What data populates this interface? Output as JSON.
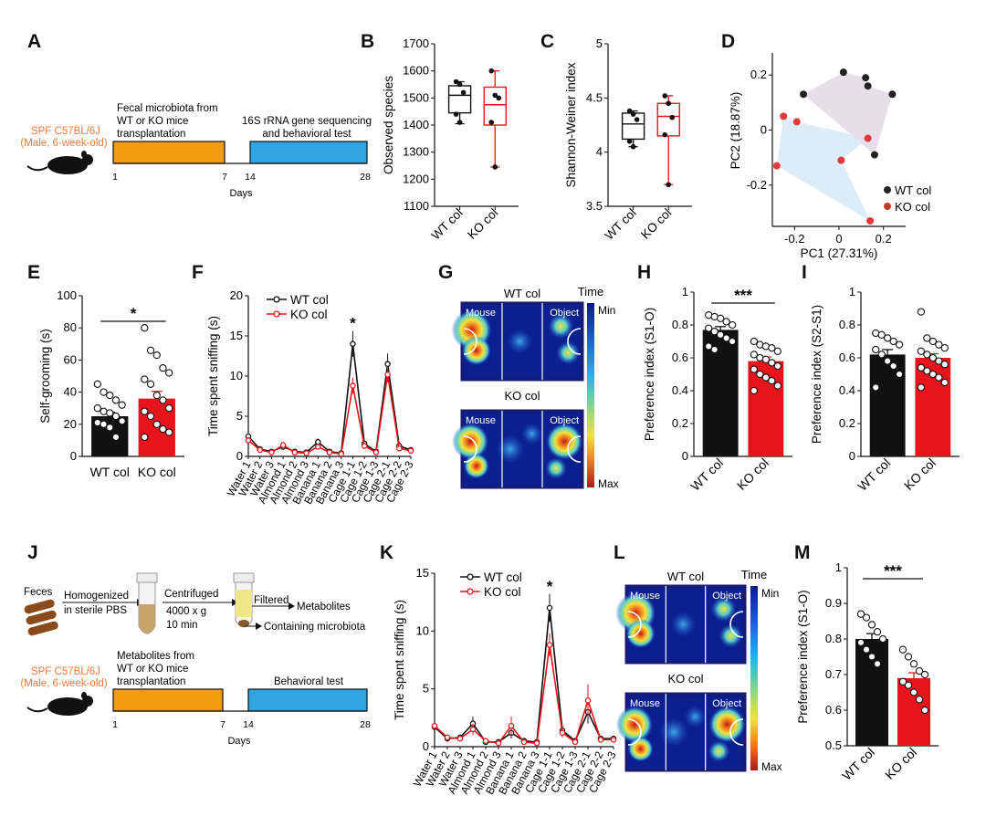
{
  "panel_labels": [
    "A",
    "B",
    "C",
    "D",
    "E",
    "F",
    "G",
    "H",
    "I",
    "J",
    "K",
    "L",
    "M"
  ],
  "colors": {
    "wt": "#111111",
    "ko": "#e8141b",
    "orange": "#f09b10",
    "blue": "#2fa6e2",
    "strain": "#f07a3c",
    "pcaWtHull": "#e7deea",
    "pcaKoHull": "#dcecf8",
    "heatBg": "#0b1f8f",
    "heatFrame": "#1a1a6e",
    "stat": "#111111"
  },
  "panel_a": {
    "strain_line1": "SPF C57BL/6J",
    "strain_line2": "(Male, 6-week-old)",
    "phase1_line1": "Fecal microbiota from",
    "phase1_line2": "WT or KO mice",
    "phase1_line3": "transplantation",
    "phase2_line1": "16S rRNA gene sequencing",
    "phase2_line2": "and behavioral test",
    "ticks": [
      "1",
      "7",
      "14",
      "28"
    ],
    "axis_label": "Days"
  },
  "panel_j": {
    "feces": "Feces",
    "step1_line1": "Homogenized",
    "step1_line2": "in sterile PBS",
    "step2_line1": "Centrifuged",
    "step2_line2": "4000 x g",
    "step2_line3": "10 min",
    "filtered": "Filtered",
    "metabolites": "Metabolites",
    "containing": "Containing microbiota",
    "strain_line1": "SPF C57BL/6J",
    "strain_line2": "(Male, 6-week-old)",
    "phase1_line1": "Metabolites from",
    "phase1_line2": "WT or KO mice",
    "phase1_line3": "transplantation",
    "phase2_line1": "Behavioral test",
    "ticks": [
      "1",
      "7",
      "14",
      "28"
    ],
    "axis_label": "Days"
  },
  "heatmap_text": {
    "time": "Time",
    "min": "Min",
    "max": "Max",
    "mouse": "Mouse",
    "object": "Object"
  },
  "chart_data": [
    {
      "id": "B",
      "type": "box",
      "ylabel": "Observed species",
      "ylim": [
        1100,
        1700
      ],
      "yticks": [
        1100,
        1200,
        1300,
        1400,
        1500,
        1600,
        1700
      ],
      "categories": [
        "WT col",
        "KO col"
      ],
      "series": [
        {
          "name": "WT col",
          "q1": 1445,
          "median": 1510,
          "q3": 1545,
          "whisker_low": 1405,
          "whisker_high": 1560,
          "points": [
            1560,
            1550,
            1520,
            1440,
            1410
          ]
        },
        {
          "name": "KO col",
          "q1": 1400,
          "median": 1475,
          "q3": 1540,
          "whisker_low": 1245,
          "whisker_high": 1600,
          "points": [
            1600,
            1510,
            1500,
            1410,
            1245
          ]
        }
      ]
    },
    {
      "id": "C",
      "type": "box",
      "ylabel": "Shannon-Weiner index",
      "ylim": [
        3.5,
        5.0
      ],
      "yticks": [
        3.5,
        4.0,
        4.5,
        5.0
      ],
      "categories": [
        "WT col",
        "KO col"
      ],
      "series": [
        {
          "name": "WT col",
          "q1": 4.12,
          "median": 4.26,
          "q3": 4.36,
          "whisker_low": 4.05,
          "whisker_high": 4.38,
          "points": [
            4.38,
            4.35,
            4.3,
            4.1,
            4.05
          ]
        },
        {
          "name": "KO col",
          "q1": 4.15,
          "median": 4.33,
          "q3": 4.45,
          "whisker_low": 3.7,
          "whisker_high": 4.52,
          "points": [
            4.52,
            4.45,
            4.32,
            4.16,
            3.7
          ]
        }
      ]
    },
    {
      "id": "D",
      "type": "scatter",
      "xlabel": "PC1 (27.31%)",
      "ylabel": "PC2 (18.87%)",
      "xlim": [
        -0.3,
        0.3
      ],
      "ylim": [
        -0.35,
        0.28
      ],
      "xticks": [
        -0.2,
        0.0,
        0.2
      ],
      "yticks": [
        -0.2,
        0.0,
        0.2
      ],
      "legend": [
        "WT col",
        "KO col"
      ],
      "series": [
        {
          "name": "WT col",
          "x": [
            -0.16,
            0.02,
            0.12,
            0.13,
            0.24,
            0.16
          ],
          "y": [
            0.13,
            0.21,
            0.19,
            0.16,
            0.13,
            -0.09
          ]
        },
        {
          "name": "KO col",
          "x": [
            -0.25,
            -0.19,
            -0.28,
            0.01,
            0.13,
            0.14
          ],
          "y": [
            0.05,
            0.03,
            -0.13,
            -0.11,
            -0.03,
            -0.33
          ]
        }
      ]
    },
    {
      "id": "E",
      "type": "bar",
      "ylabel": "Self-grooming (s)",
      "ylim": [
        0,
        100
      ],
      "yticks": [
        0,
        20,
        40,
        60,
        80,
        100
      ],
      "categories": [
        "WT col",
        "KO col"
      ],
      "significance": "*",
      "series": [
        {
          "name": "WT col",
          "mean": 25,
          "sem": 2.5,
          "points": [
            45,
            40,
            38,
            35,
            32,
            30,
            28,
            27,
            25,
            22,
            21,
            20,
            18,
            12
          ]
        },
        {
          "name": "KO col",
          "mean": 36,
          "sem": 4.5,
          "points": [
            80,
            66,
            63,
            55,
            52,
            48,
            45,
            38,
            35,
            30,
            28,
            25,
            20,
            17,
            15,
            12
          ]
        }
      ]
    },
    {
      "id": "F",
      "type": "line",
      "ylabel": "Time spent  sniffing (s)",
      "ylim": [
        0,
        20
      ],
      "yticks": [
        0,
        5,
        10,
        15,
        20
      ],
      "categories": [
        "Water 1",
        "Water 2",
        "Water 3",
        "Almond 1",
        "Almond 2",
        "Almond 3",
        "Banana 1",
        "Banana 2",
        "Banana 3",
        "Cage 1-1",
        "Cage 1-2",
        "Cage 1-3",
        "Cage 2-1",
        "Cage 2-2",
        "Cage 2-3"
      ],
      "significance": "*",
      "significance_index": 9,
      "series": [
        {
          "name": "WT col",
          "values": [
            2.5,
            0.9,
            0.6,
            1.2,
            0.6,
            0.5,
            1.8,
            0.6,
            0.4,
            14,
            1.6,
            0.6,
            11.5,
            1.3,
            0.8
          ],
          "err": [
            0.3,
            0.2,
            0.2,
            0.4,
            0.2,
            0.2,
            0.4,
            0.2,
            0.2,
            1.6,
            0.4,
            0.2,
            1.3,
            0.3,
            0.2
          ]
        },
        {
          "name": "KO col",
          "values": [
            2.0,
            0.8,
            0.5,
            1.4,
            0.5,
            0.4,
            1.2,
            0.5,
            0.3,
            8.8,
            1.3,
            0.5,
            10.2,
            1.0,
            0.7
          ],
          "err": [
            0.3,
            0.2,
            0.2,
            0.4,
            0.2,
            0.2,
            0.3,
            0.2,
            0.2,
            1.0,
            0.4,
            0.2,
            1.0,
            0.3,
            0.2
          ]
        }
      ]
    },
    {
      "id": "H",
      "type": "bar",
      "ylabel": "Preference index (S1-O)",
      "ylim": [
        0,
        1.0
      ],
      "yticks": [
        0.0,
        0.2,
        0.4,
        0.6,
        0.8,
        1.0
      ],
      "categories": [
        "WT col",
        "KO col"
      ],
      "significance": "***",
      "series": [
        {
          "name": "WT col",
          "mean": 0.77,
          "sem": 0.02,
          "points": [
            0.86,
            0.85,
            0.84,
            0.82,
            0.8,
            0.78,
            0.76,
            0.74,
            0.72,
            0.7,
            0.67,
            0.65
          ]
        },
        {
          "name": "KO col",
          "mean": 0.58,
          "sem": 0.025,
          "points": [
            0.7,
            0.68,
            0.67,
            0.66,
            0.64,
            0.62,
            0.6,
            0.59,
            0.57,
            0.55,
            0.53,
            0.5,
            0.48,
            0.46,
            0.43,
            0.4
          ]
        }
      ]
    },
    {
      "id": "I",
      "type": "bar",
      "ylabel": "Preference index (S2-S1)",
      "ylim": [
        0,
        1.0
      ],
      "yticks": [
        0.0,
        0.2,
        0.4,
        0.6,
        0.8,
        1.0
      ],
      "categories": [
        "WT col",
        "KO col"
      ],
      "series": [
        {
          "name": "WT col",
          "mean": 0.62,
          "sem": 0.03,
          "points": [
            0.75,
            0.74,
            0.72,
            0.7,
            0.68,
            0.65,
            0.62,
            0.58,
            0.55,
            0.5,
            0.42
          ]
        },
        {
          "name": "KO col",
          "mean": 0.6,
          "sem": 0.025,
          "points": [
            0.88,
            0.72,
            0.7,
            0.68,
            0.66,
            0.64,
            0.62,
            0.6,
            0.58,
            0.56,
            0.54,
            0.52,
            0.5,
            0.48,
            0.45,
            0.42
          ]
        }
      ]
    },
    {
      "id": "K",
      "type": "line",
      "ylabel": "Time spent sniffing (s)",
      "ylim": [
        0,
        15
      ],
      "yticks": [
        0,
        5,
        10,
        15
      ],
      "categories": [
        "Water 1",
        "Water 2",
        "Water 3",
        "Almond 1",
        "Almond 2",
        "Almond 3",
        "Banana 1",
        "Banana 2",
        "Banana 3",
        "Cage 1-1",
        "Cage 1-2",
        "Cage 1-3",
        "Cage 2-1",
        "Cage 2-2",
        "Cage 2-3"
      ],
      "significance": "*",
      "significance_index": 9,
      "series": [
        {
          "name": "WT col",
          "values": [
            1.7,
            0.7,
            0.8,
            2.0,
            0.4,
            0.4,
            1.2,
            0.5,
            0.4,
            12,
            1.4,
            0.5,
            3.0,
            0.7,
            0.7
          ],
          "err": [
            0.3,
            0.2,
            0.2,
            0.6,
            0.2,
            0.2,
            0.5,
            0.2,
            0.2,
            1.2,
            0.4,
            0.2,
            1.0,
            0.2,
            0.2
          ]
        },
        {
          "name": "KO col",
          "values": [
            1.8,
            0.8,
            0.7,
            1.5,
            0.5,
            0.3,
            1.8,
            0.4,
            0.3,
            8.8,
            1.2,
            0.4,
            4.0,
            0.6,
            0.6
          ],
          "err": [
            0.3,
            0.2,
            0.2,
            0.5,
            0.2,
            0.2,
            0.8,
            0.2,
            0.2,
            1.0,
            0.4,
            0.2,
            1.4,
            0.2,
            0.2
          ]
        }
      ]
    },
    {
      "id": "M",
      "type": "bar",
      "ylabel": "Preference index (S1-O)",
      "ylim": [
        0.5,
        1.0
      ],
      "yticks": [
        0.5,
        0.6,
        0.7,
        0.8,
        0.9,
        1.0
      ],
      "categories": [
        "WT col",
        "KO col"
      ],
      "significance": "***",
      "series": [
        {
          "name": "WT col",
          "mean": 0.8,
          "sem": 0.015,
          "points": [
            0.87,
            0.86,
            0.84,
            0.82,
            0.8,
            0.79,
            0.77,
            0.75,
            0.73
          ]
        },
        {
          "name": "KO col",
          "mean": 0.69,
          "sem": 0.015,
          "points": [
            0.77,
            0.75,
            0.73,
            0.71,
            0.7,
            0.68,
            0.67,
            0.65,
            0.63,
            0.6
          ]
        }
      ]
    }
  ],
  "heatmaps": [
    {
      "id": "G",
      "title_top": "WT col",
      "title_bottom": "KO col"
    },
    {
      "id": "L",
      "title_top": "WT col",
      "title_bottom": "KO col"
    }
  ]
}
